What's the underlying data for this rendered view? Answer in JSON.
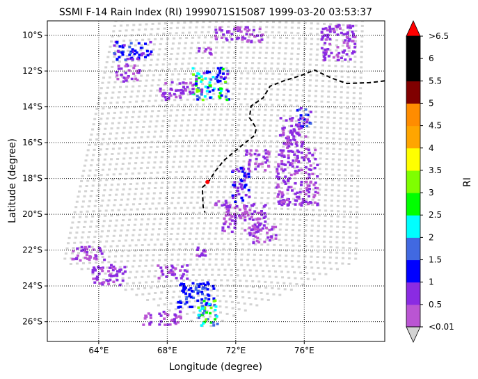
{
  "chart_data": {
    "type": "heatmap",
    "title": "SSMI F-14 Rain Index (RI) 1999071S15087 1999-03-20 03:53:37",
    "xlabel": "Longitude (degree)",
    "ylabel": "Latitude (degree)",
    "xlim": [
      61,
      80.7
    ],
    "ylim": [
      -27.1,
      -9.2
    ],
    "x_ticks": [
      {
        "value": 64,
        "label": "64°E"
      },
      {
        "value": 68,
        "label": "68°E"
      },
      {
        "value": 72,
        "label": "72°E"
      },
      {
        "value": 76,
        "label": "76°E"
      }
    ],
    "y_ticks": [
      {
        "value": -10,
        "label": "10°S"
      },
      {
        "value": -12,
        "label": "12°S"
      },
      {
        "value": -14,
        "label": "14°S"
      },
      {
        "value": -16,
        "label": "16°S"
      },
      {
        "value": -18,
        "label": "18°S"
      },
      {
        "value": -20,
        "label": "20°S"
      },
      {
        "value": -22,
        "label": "22°S"
      },
      {
        "value": -24,
        "label": "24°S"
      },
      {
        "value": -26,
        "label": "26°S"
      }
    ],
    "grid": true,
    "colorbar": {
      "label": "RI",
      "levels": [
        "<0.01",
        "0.5",
        "1",
        "1.5",
        "2",
        "2.5",
        "3",
        "3.5",
        "4",
        "4.5",
        "5",
        "5.5",
        "6",
        ">6.5"
      ],
      "colors": [
        "#ba55d3",
        "#8a2be2",
        "#0000ff",
        "#4169e1",
        "#00ffff",
        "#00ff00",
        "#7fff00",
        "#ffff00",
        "#ffa500",
        "#ff8c00",
        "#800000",
        "#000000",
        "#000000"
      ],
      "under_color": "#d3d3d3",
      "over_color": "#ff0000"
    },
    "swath_color": "#d3d3d3",
    "track": [
      [
        80.7,
        -12.55
      ],
      [
        79.8,
        -12.65
      ],
      [
        78.5,
        -12.7
      ],
      [
        77.6,
        -12.4
      ],
      [
        76.6,
        -11.95
      ],
      [
        75.8,
        -12.25
      ],
      [
        74.8,
        -12.55
      ],
      [
        74.0,
        -12.85
      ],
      [
        73.6,
        -13.5
      ],
      [
        72.9,
        -13.95
      ],
      [
        72.8,
        -14.6
      ],
      [
        73.2,
        -15.2
      ],
      [
        73.1,
        -15.6
      ],
      [
        72.3,
        -16.2
      ],
      [
        71.3,
        -17.0
      ],
      [
        70.8,
        -17.6
      ],
      [
        70.4,
        -18.2
      ],
      [
        70.05,
        -18.5
      ],
      [
        70.1,
        -19.6
      ],
      [
        70.2,
        -19.9
      ]
    ],
    "storm_center": [
      70.35,
      -18.2
    ],
    "rain_clusters": [
      {
        "lon": [
          64.9,
          67.1
        ],
        "lat": [
          -11.4,
          -10.3
        ],
        "values": [
          1,
          1,
          0.5,
          1.5,
          1,
          0.5
        ]
      },
      {
        "lon": [
          65.0,
          66.4
        ],
        "lat": [
          -12.6,
          -11.6
        ],
        "values": [
          0.5,
          0.01,
          0.5
        ]
      },
      {
        "lon": [
          67.6,
          69.6
        ],
        "lat": [
          -13.6,
          -12.6
        ],
        "values": [
          0.5,
          0.01,
          0.5
        ]
      },
      {
        "lon": [
          69.5,
          71.6
        ],
        "lat": [
          -13.6,
          -11.8
        ],
        "values": [
          1,
          1.5,
          2.5,
          3,
          2,
          1,
          0.5
        ]
      },
      {
        "lon": [
          69.8,
          70.6
        ],
        "lat": [
          -11.1,
          -10.6
        ],
        "values": [
          0.5,
          0.01
        ]
      },
      {
        "lon": [
          70.8,
          73.6
        ],
        "lat": [
          -10.4,
          -9.5
        ],
        "values": [
          0.5,
          0.01
        ]
      },
      {
        "lon": [
          77.0,
          79.0
        ],
        "lat": [
          -11.4,
          -9.4
        ],
        "values": [
          0.5,
          0.01,
          0.5
        ]
      },
      {
        "lon": [
          75.6,
          76.4
        ],
        "lat": [
          -15.1,
          -14.0
        ],
        "values": [
          1,
          1.5,
          0.5
        ]
      },
      {
        "lon": [
          74.6,
          76.2
        ],
        "lat": [
          -16.3,
          -14.6
        ],
        "values": [
          0.5,
          0.01
        ]
      },
      {
        "lon": [
          74.4,
          76.8
        ],
        "lat": [
          -19.5,
          -16.3
        ],
        "values": [
          0.5,
          0.01,
          0.5
        ]
      },
      {
        "lon": [
          72.6,
          74.0
        ],
        "lat": [
          -17.6,
          -16.4
        ],
        "values": [
          0.5,
          0.01
        ]
      },
      {
        "lon": [
          71.8,
          72.8
        ],
        "lat": [
          -19.3,
          -17.4
        ],
        "values": [
          1,
          0.5
        ]
      },
      {
        "lon": [
          71.2,
          73.8
        ],
        "lat": [
          -21.0,
          -19.4
        ],
        "values": [
          0.5,
          0.01
        ]
      },
      {
        "lon": [
          70.8,
          71.6
        ],
        "lat": [
          -19.6,
          -19.2
        ],
        "values": [
          0.5,
          0.01
        ]
      },
      {
        "lon": [
          72.8,
          74.4
        ],
        "lat": [
          -21.6,
          -20.6
        ],
        "values": [
          0.5,
          0.01
        ]
      },
      {
        "lon": [
          62.4,
          64.4
        ],
        "lat": [
          -22.6,
          -21.8
        ],
        "values": [
          0.5,
          0.01
        ]
      },
      {
        "lon": [
          63.6,
          65.6
        ],
        "lat": [
          -24.0,
          -22.8
        ],
        "values": [
          0.5,
          0.01,
          0.5
        ]
      },
      {
        "lon": [
          67.4,
          69.2
        ],
        "lat": [
          -23.6,
          -22.8
        ],
        "values": [
          0.5,
          0.01
        ]
      },
      {
        "lon": [
          68.6,
          70.8
        ],
        "lat": [
          -25.2,
          -23.8
        ],
        "values": [
          1,
          1.5,
          1
        ]
      },
      {
        "lon": [
          69.8,
          71.0
        ],
        "lat": [
          -26.2,
          -24.8
        ],
        "values": [
          2,
          2.5,
          3,
          1.5
        ]
      },
      {
        "lon": [
          66.6,
          68.8
        ],
        "lat": [
          -26.2,
          -25.4
        ],
        "values": [
          0.5,
          0.01
        ]
      },
      {
        "lon": [
          69.6,
          70.4
        ],
        "lat": [
          -22.4,
          -21.8
        ],
        "values": [
          0.5,
          0.01
        ]
      }
    ]
  }
}
